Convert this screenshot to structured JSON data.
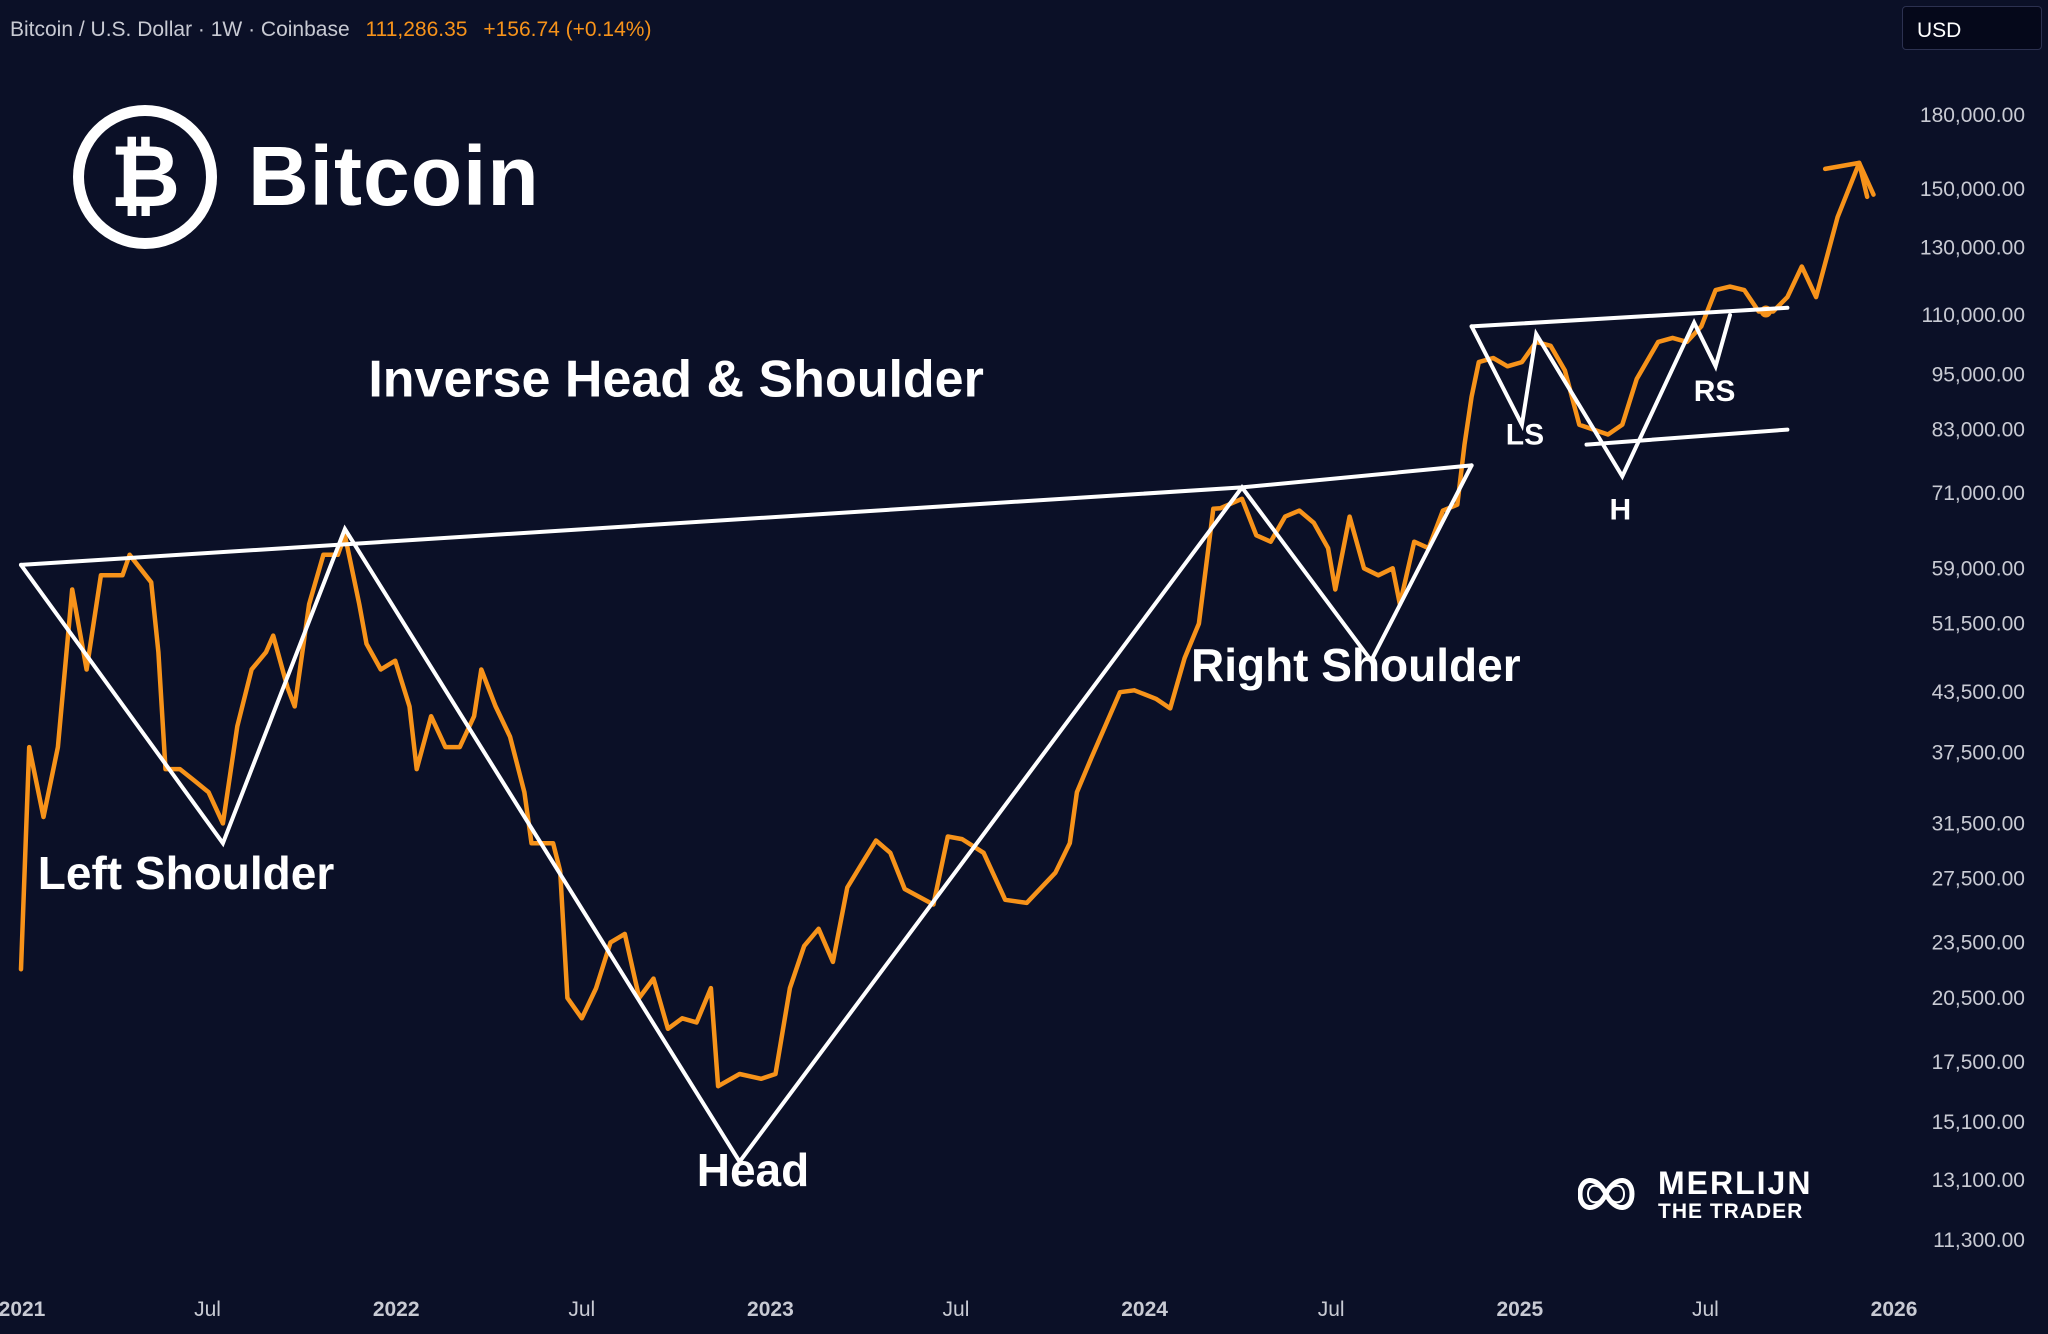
{
  "header": {
    "symbol": "Bitcoin / U.S. Dollar",
    "interval": "1W",
    "exchange": "Coinbase",
    "price": "111,286.35",
    "change": "+156.74 (+0.14%)",
    "currency": "USD"
  },
  "logo": {
    "name": "Bitcoin",
    "symbol": "₿",
    "icon": "bitcoin-icon"
  },
  "brand": {
    "line1": "MERLIJN",
    "line2": "THE TRADER",
    "icon": "merlijn-infinity-icon"
  },
  "colors": {
    "background": "#0b1027",
    "price_line": "#f7931a",
    "pattern": "#ffffff",
    "axis_text": "#c8cad3"
  },
  "chart_data": {
    "type": "line",
    "y_scale": "log",
    "x_range": [
      "2021-01-01",
      "2025-12-31"
    ],
    "y_range": [
      10500,
      200000
    ],
    "x_ticks": [
      {
        "label": "2021",
        "date": "2021-01-01",
        "bold": true
      },
      {
        "label": "Jul",
        "date": "2021-07-01",
        "bold": false
      },
      {
        "label": "2022",
        "date": "2022-01-01",
        "bold": true
      },
      {
        "label": "Jul",
        "date": "2022-07-01",
        "bold": false
      },
      {
        "label": "2023",
        "date": "2023-01-01",
        "bold": true
      },
      {
        "label": "Jul",
        "date": "2023-07-01",
        "bold": false
      },
      {
        "label": "2024",
        "date": "2024-01-01",
        "bold": true
      },
      {
        "label": "Jul",
        "date": "2024-07-01",
        "bold": false
      },
      {
        "label": "2025",
        "date": "2025-01-01",
        "bold": true
      },
      {
        "label": "Jul",
        "date": "2025-07-01",
        "bold": false
      },
      {
        "label": "2026",
        "date": "2026-01-01",
        "bold": true
      }
    ],
    "y_ticks": [
      {
        "label": "180,000.00",
        "value": 180000
      },
      {
        "label": "150,000.00",
        "value": 150000
      },
      {
        "label": "130,000.00",
        "value": 130000
      },
      {
        "label": "110,000.00",
        "value": 110000
      },
      {
        "label": "95,000.00",
        "value": 95000
      },
      {
        "label": "83,000.00",
        "value": 83000
      },
      {
        "label": "71,000.00",
        "value": 71000
      },
      {
        "label": "59,000.00",
        "value": 59000
      },
      {
        "label": "51,500.00",
        "value": 51500
      },
      {
        "label": "43,500.00",
        "value": 43500
      },
      {
        "label": "37,500.00",
        "value": 37500
      },
      {
        "label": "31,500.00",
        "value": 31500
      },
      {
        "label": "27,500.00",
        "value": 27500
      },
      {
        "label": "23,500.00",
        "value": 23500
      },
      {
        "label": "20,500.00",
        "value": 20500
      },
      {
        "label": "17,500.00",
        "value": 17500
      },
      {
        "label": "15,100.00",
        "value": 15100
      },
      {
        "label": "13,100.00",
        "value": 13100
      },
      {
        "label": "11,300.00",
        "value": 11300
      }
    ],
    "series": [
      {
        "points": [
          [
            "2020-12-31",
            22000
          ],
          [
            "2021-01-08",
            38000
          ],
          [
            "2021-01-22",
            32000
          ],
          [
            "2021-02-05",
            38000
          ],
          [
            "2021-02-19",
            56000
          ],
          [
            "2021-03-05",
            46000
          ],
          [
            "2021-03-19",
            58000
          ],
          [
            "2021-04-09",
            58000
          ],
          [
            "2021-04-16",
            61000
          ],
          [
            "2021-05-07",
            57000
          ],
          [
            "2021-05-14",
            48000
          ],
          [
            "2021-05-21",
            36000
          ],
          [
            "2021-06-04",
            36000
          ],
          [
            "2021-06-18",
            35000
          ],
          [
            "2021-07-02",
            34000
          ],
          [
            "2021-07-16",
            31500
          ],
          [
            "2021-07-30",
            40000
          ],
          [
            "2021-08-13",
            46000
          ],
          [
            "2021-08-27",
            48000
          ],
          [
            "2021-09-03",
            50000
          ],
          [
            "2021-09-17",
            44000
          ],
          [
            "2021-09-24",
            42000
          ],
          [
            "2021-10-08",
            54000
          ],
          [
            "2021-10-22",
            61000
          ],
          [
            "2021-11-05",
            61000
          ],
          [
            "2021-11-12",
            64000
          ],
          [
            "2021-11-26",
            54000
          ],
          [
            "2021-12-03",
            49000
          ],
          [
            "2021-12-17",
            46000
          ],
          [
            "2021-12-31",
            47000
          ],
          [
            "2022-01-14",
            42000
          ],
          [
            "2022-01-21",
            36000
          ],
          [
            "2022-02-04",
            41000
          ],
          [
            "2022-02-18",
            38000
          ],
          [
            "2022-03-04",
            38000
          ],
          [
            "2022-03-18",
            41000
          ],
          [
            "2022-03-25",
            46000
          ],
          [
            "2022-04-08",
            42000
          ],
          [
            "2022-04-22",
            39000
          ],
          [
            "2022-05-06",
            34000
          ],
          [
            "2022-05-13",
            30000
          ],
          [
            "2022-06-03",
            30000
          ],
          [
            "2022-06-10",
            28000
          ],
          [
            "2022-06-17",
            20500
          ],
          [
            "2022-07-01",
            19500
          ],
          [
            "2022-07-15",
            21000
          ],
          [
            "2022-07-29",
            23500
          ],
          [
            "2022-08-12",
            24000
          ],
          [
            "2022-08-26",
            20500
          ],
          [
            "2022-09-09",
            21500
          ],
          [
            "2022-09-23",
            19000
          ],
          [
            "2022-10-07",
            19500
          ],
          [
            "2022-10-21",
            19300
          ],
          [
            "2022-11-04",
            21000
          ],
          [
            "2022-11-11",
            16500
          ],
          [
            "2022-12-02",
            17000
          ],
          [
            "2022-12-23",
            16800
          ],
          [
            "2023-01-06",
            17000
          ],
          [
            "2023-01-20",
            21000
          ],
          [
            "2023-02-03",
            23300
          ],
          [
            "2023-02-17",
            24300
          ],
          [
            "2023-03-03",
            22400
          ],
          [
            "2023-03-17",
            26900
          ],
          [
            "2023-03-31",
            28500
          ],
          [
            "2023-04-14",
            30200
          ],
          [
            "2023-04-28",
            29300
          ],
          [
            "2023-05-12",
            26800
          ],
          [
            "2023-06-09",
            25800
          ],
          [
            "2023-06-23",
            30500
          ],
          [
            "2023-07-07",
            30300
          ],
          [
            "2023-07-28",
            29300
          ],
          [
            "2023-08-18",
            26100
          ],
          [
            "2023-09-08",
            25900
          ],
          [
            "2023-10-06",
            27900
          ],
          [
            "2023-10-20",
            30000
          ],
          [
            "2023-10-27",
            34000
          ],
          [
            "2023-11-10",
            37000
          ],
          [
            "2023-12-08",
            43500
          ],
          [
            "2023-12-22",
            43700
          ],
          [
            "2024-01-12",
            42800
          ],
          [
            "2024-01-26",
            41800
          ],
          [
            "2024-02-09",
            47300
          ],
          [
            "2024-02-23",
            51500
          ],
          [
            "2024-03-08",
            68300
          ],
          [
            "2024-03-15",
            68400
          ],
          [
            "2024-04-05",
            70000
          ],
          [
            "2024-04-19",
            64000
          ],
          [
            "2024-05-03",
            63000
          ],
          [
            "2024-05-17",
            67000
          ],
          [
            "2024-05-31",
            68000
          ],
          [
            "2024-06-14",
            66000
          ],
          [
            "2024-06-28",
            62000
          ],
          [
            "2024-07-05",
            56000
          ],
          [
            "2024-07-19",
            67000
          ],
          [
            "2024-08-02",
            59000
          ],
          [
            "2024-08-16",
            58000
          ],
          [
            "2024-08-30",
            59000
          ],
          [
            "2024-09-06",
            54000
          ],
          [
            "2024-09-20",
            63000
          ],
          [
            "2024-10-04",
            62000
          ],
          [
            "2024-10-18",
            68000
          ],
          [
            "2024-11-01",
            69000
          ],
          [
            "2024-11-08",
            80000
          ],
          [
            "2024-11-15",
            90000
          ],
          [
            "2024-11-22",
            98000
          ],
          [
            "2024-12-06",
            99000
          ],
          [
            "2024-12-20",
            97000
          ],
          [
            "2025-01-03",
            98000
          ],
          [
            "2025-01-17",
            103000
          ],
          [
            "2025-01-31",
            102000
          ],
          [
            "2025-02-14",
            96000
          ],
          [
            "2025-02-28",
            84000
          ],
          [
            "2025-03-14",
            83000
          ],
          [
            "2025-03-28",
            82000
          ],
          [
            "2025-04-11",
            84000
          ],
          [
            "2025-04-25",
            94000
          ],
          [
            "2025-05-16",
            103000
          ],
          [
            "2025-05-30",
            104000
          ],
          [
            "2025-06-13",
            103000
          ],
          [
            "2025-06-27",
            107000
          ],
          [
            "2025-07-11",
            117000
          ],
          [
            "2025-07-25",
            118000
          ],
          [
            "2025-08-08",
            117000
          ],
          [
            "2025-08-22",
            111000
          ],
          [
            "2025-09-05",
            111000
          ],
          [
            "2025-09-19",
            115000
          ],
          [
            "2025-10-03",
            124000
          ],
          [
            "2025-10-17",
            115000
          ],
          [
            "2025-11-07",
            140000
          ],
          [
            "2025-11-28",
            160000
          ],
          [
            "2025-12-12",
            148000
          ]
        ]
      }
    ],
    "pattern": {
      "neckline": [
        [
          "2020-12-31",
          59500
        ],
        [
          "2024-04-05",
          72000
        ],
        [
          "2024-11-15",
          76000
        ]
      ],
      "zigzag": [
        [
          "2020-12-31",
          59500
        ],
        [
          "2021-07-16",
          30000
        ],
        [
          "2021-11-12",
          65000
        ],
        [
          "2022-12-02",
          13700
        ],
        [
          "2024-04-05",
          72000
        ],
        [
          "2024-08-09",
          47000
        ],
        [
          "2024-11-15",
          76000
        ]
      ],
      "small_top": [
        [
          "2024-11-15",
          107000
        ],
        [
          "2025-09-19",
          112000
        ]
      ],
      "small_bottom": [
        [
          "2025-09-19",
          83000
        ],
        [
          "2025-03-07",
          80000
        ]
      ],
      "small_zigzag": [
        [
          "2024-11-15",
          107000
        ],
        [
          "2025-01-03",
          84000
        ],
        [
          "2025-01-17",
          105000
        ],
        [
          "2025-04-11",
          74000
        ],
        [
          "2025-06-20",
          108000
        ],
        [
          "2025-07-11",
          97000
        ],
        [
          "2025-07-25",
          110000
        ]
      ],
      "arrow_tip": [
        "2025-11-28",
        160000
      ],
      "dot": [
        "2025-08-29",
        111000
      ]
    },
    "annotations": [
      {
        "text": "Inverse Head & Shoulder",
        "date": "2022-10-01",
        "value": 90000,
        "size": 52
      },
      {
        "text": "Left Shoulder",
        "date": "2021-06-10",
        "value": 26800,
        "size": 46
      },
      {
        "text": "Head",
        "date": "2022-12-15",
        "value": 12900,
        "size": 46
      },
      {
        "text": "Right Shoulder",
        "date": "2024-07-25",
        "value": 44700,
        "size": 46
      },
      {
        "text": "LS",
        "date": "2025-01-06",
        "value": 80000,
        "size": 30
      },
      {
        "text": "H",
        "date": "2025-04-09",
        "value": 66500,
        "size": 30
      },
      {
        "text": "RS",
        "date": "2025-07-10",
        "value": 89000,
        "size": 30
      }
    ]
  }
}
